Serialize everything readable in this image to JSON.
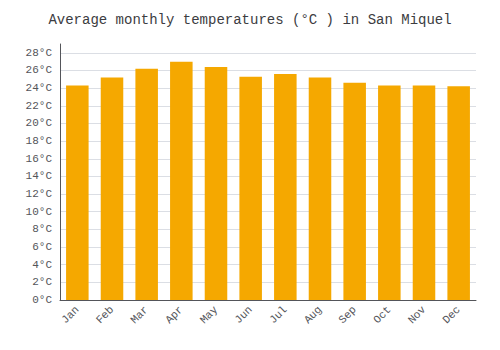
{
  "chart_data": {
    "type": "bar",
    "title": "Average monthly temperatures (°C ) in San Miquel",
    "categories": [
      "Jan",
      "Feb",
      "Mar",
      "Apr",
      "May",
      "Jun",
      "Jul",
      "Aug",
      "Sep",
      "Oct",
      "Nov",
      "Dec"
    ],
    "values": [
      24.3,
      25.2,
      26.2,
      27.0,
      26.4,
      25.3,
      25.6,
      25.2,
      24.6,
      24.3,
      24.3,
      24.2
    ],
    "color": "#F5A800",
    "ylim": [
      0,
      29
    ],
    "yticks": [
      {
        "value": 0,
        "label": "0°C"
      },
      {
        "value": 2,
        "label": "2°C"
      },
      {
        "value": 4,
        "label": "4°C"
      },
      {
        "value": 6,
        "label": "6°C"
      },
      {
        "value": 8,
        "label": "8°C"
      },
      {
        "value": 10,
        "label": "10°C"
      },
      {
        "value": 12,
        "label": "12°C"
      },
      {
        "value": 14,
        "label": "14°C"
      },
      {
        "value": 16,
        "label": "16°C"
      },
      {
        "value": 18,
        "label": "18°C"
      },
      {
        "value": 20,
        "label": "20°C"
      },
      {
        "value": 22,
        "label": "22°C"
      },
      {
        "value": 24,
        "label": "24°C"
      },
      {
        "value": 26,
        "label": "26°C"
      },
      {
        "value": 28,
        "label": "28°C"
      }
    ],
    "grid": true
  }
}
